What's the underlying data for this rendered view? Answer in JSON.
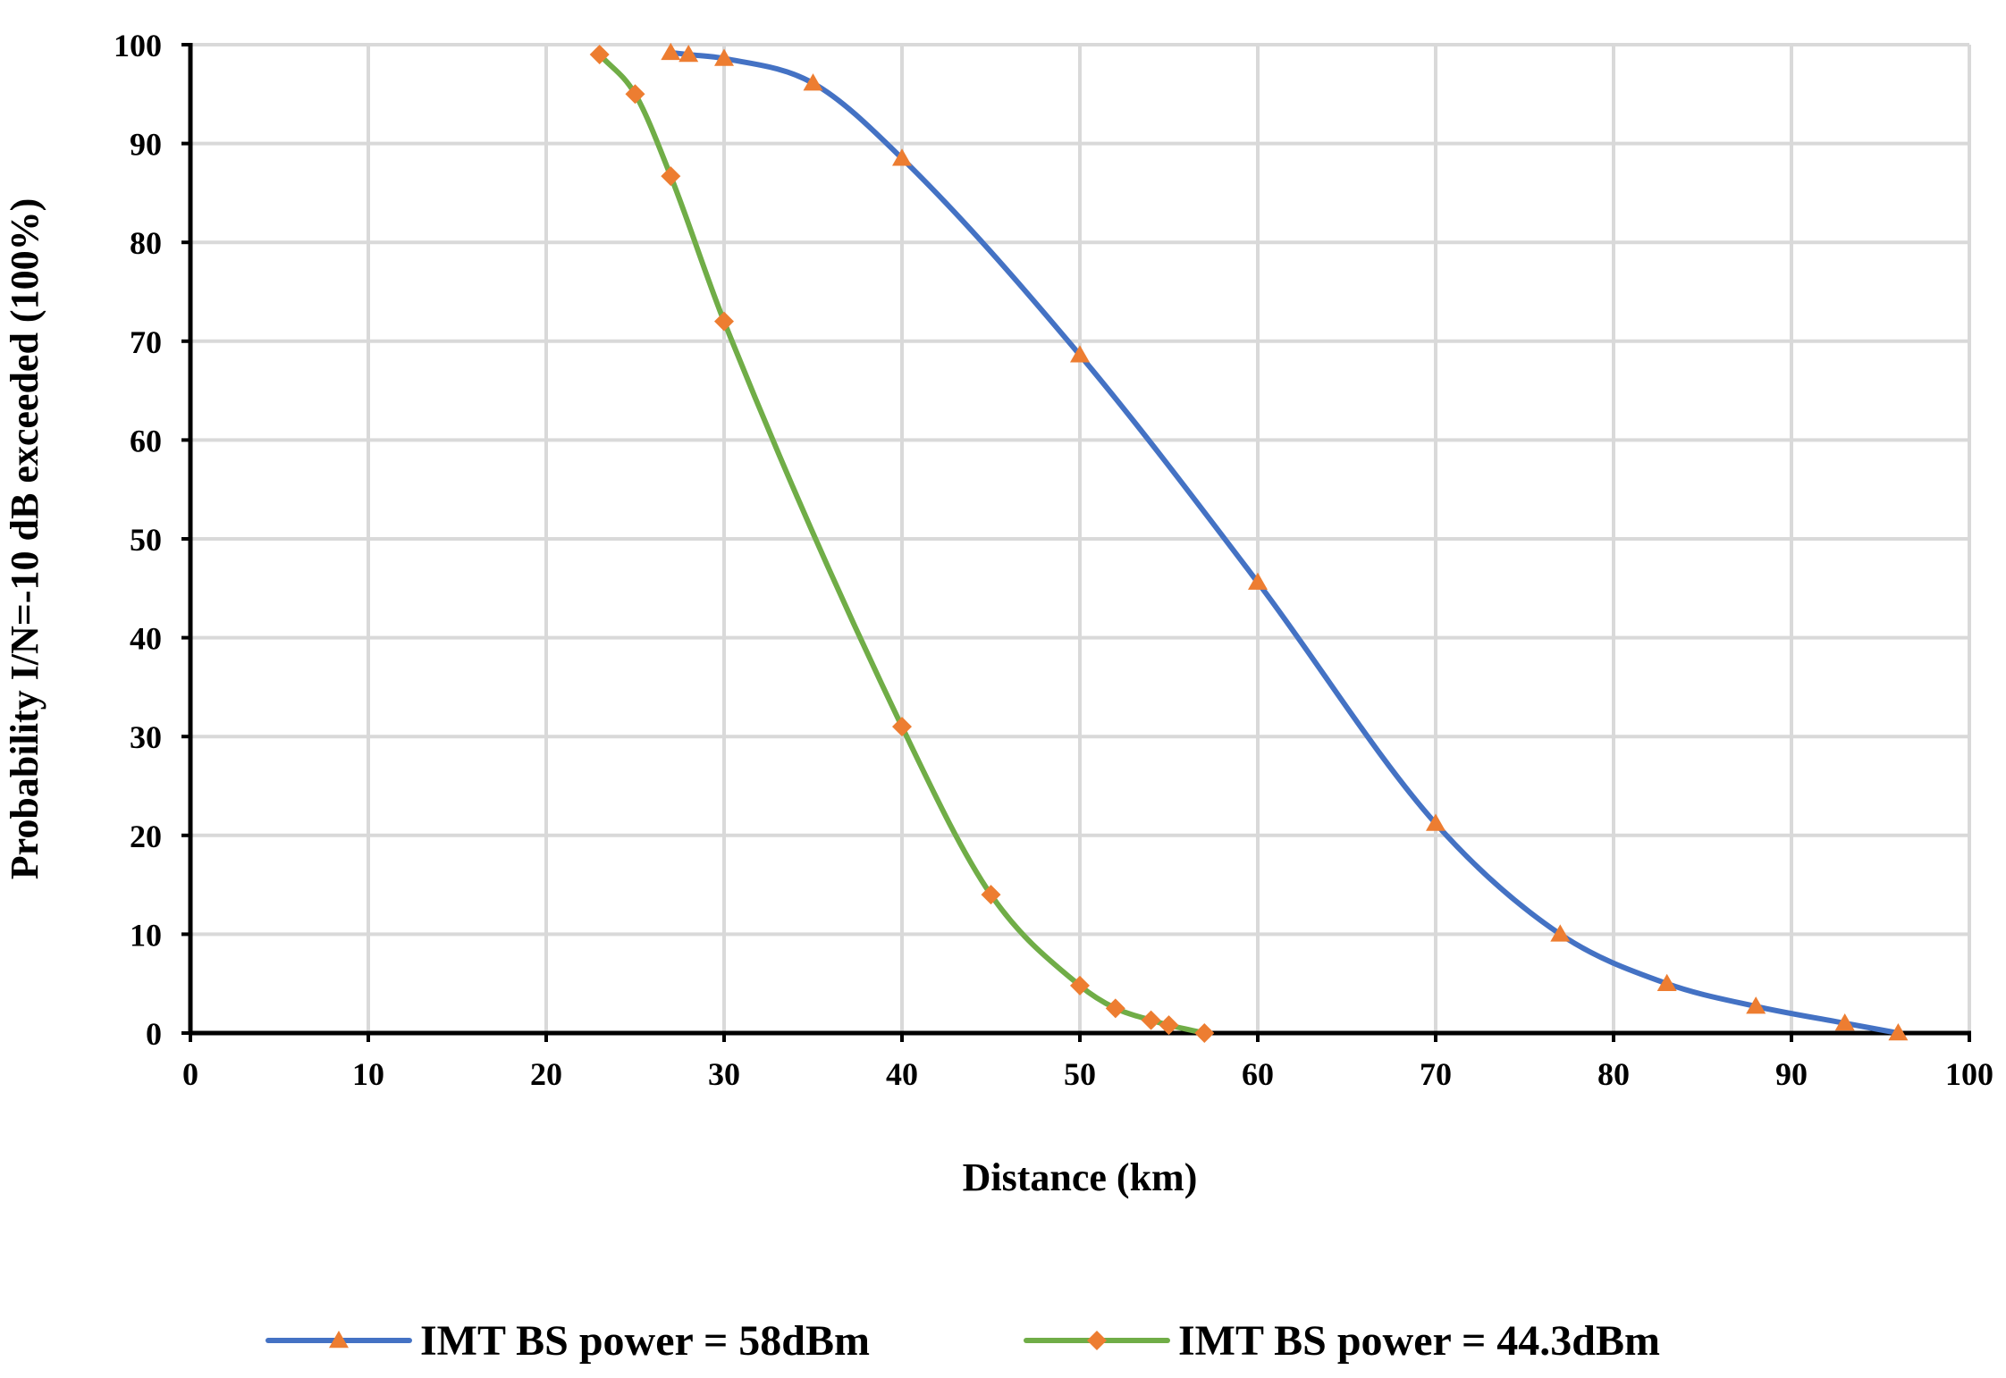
{
  "chart_data": {
    "type": "line",
    "title": "",
    "xlabel": "Distance (km)",
    "ylabel": "Probability I/N=-10 dB exceeded (100%)",
    "xlim": [
      0,
      100
    ],
    "ylim": [
      0,
      100
    ],
    "x_ticks": [
      0,
      10,
      20,
      30,
      40,
      50,
      60,
      70,
      80,
      90,
      100
    ],
    "y_ticks": [
      0,
      10,
      20,
      30,
      40,
      50,
      60,
      70,
      80,
      90,
      100
    ],
    "grid": true,
    "legend_position": "bottom-center",
    "series": [
      {
        "name": "IMT BS power = 58dBm",
        "color": "#4472C4",
        "marker": "triangle",
        "marker_color": "#ED7D31",
        "points": [
          [
            27,
            99.2
          ],
          [
            28,
            99.0
          ],
          [
            30,
            98.6
          ],
          [
            35,
            96.1
          ],
          [
            40,
            88.5
          ],
          [
            50,
            68.6
          ],
          [
            60,
            45.6
          ],
          [
            70,
            21.2
          ],
          [
            77,
            10.0
          ],
          [
            83,
            5.0
          ],
          [
            88,
            2.7
          ],
          [
            93,
            1.0
          ],
          [
            96,
            0.0
          ]
        ]
      },
      {
        "name": "IMT BS power = 44.3dBm",
        "color": "#70AD47",
        "marker": "diamond",
        "marker_color": "#ED7D31",
        "points": [
          [
            23,
            99.0
          ],
          [
            25,
            95.0
          ],
          [
            27,
            86.7
          ],
          [
            30,
            72.0
          ],
          [
            40,
            31.0
          ],
          [
            45,
            14.0
          ],
          [
            50,
            4.8
          ],
          [
            52,
            2.5
          ],
          [
            54,
            1.3
          ],
          [
            55,
            0.8
          ],
          [
            57,
            0.0
          ]
        ]
      }
    ]
  }
}
